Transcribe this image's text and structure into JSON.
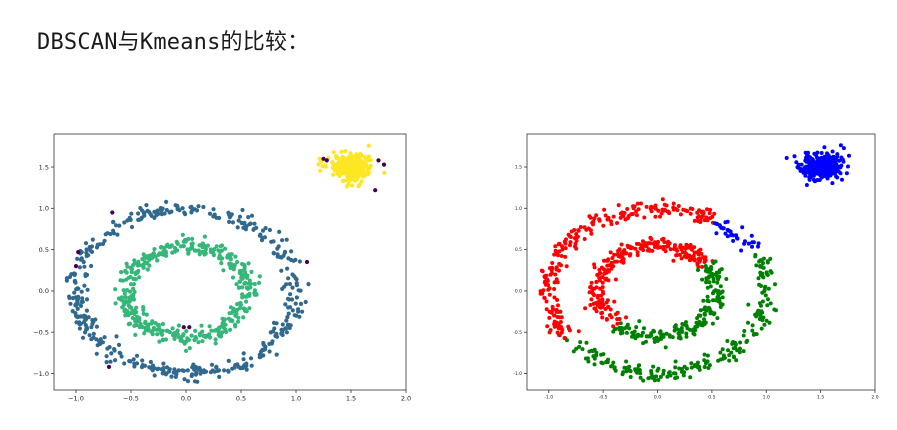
{
  "page": {
    "title": "DBSCAN与Kmeans的比较："
  },
  "chart_data": [
    {
      "type": "scatter",
      "title": "",
      "xlabel": "",
      "ylabel": "",
      "xlim": [
        -1.2,
        2.0
      ],
      "ylim": [
        -1.2,
        1.9
      ],
      "xticks": [
        "−1.0",
        "−0.5",
        "0.0",
        "0.5",
        "1.0",
        "1.5",
        "2.0"
      ],
      "xtick_values": [
        -1.0,
        -0.5,
        0.0,
        0.5,
        1.0,
        1.5,
        2.0
      ],
      "yticks": [
        "−1.0",
        "−0.5",
        "0.0",
        "0.5",
        "1.0",
        "1.5"
      ],
      "ytick_values": [
        -1.0,
        -0.5,
        0.0,
        0.5,
        1.0,
        1.5
      ],
      "grid": false,
      "series": [
        {
          "color": "#31688e",
          "shape": "ring",
          "center": [
            0.0,
            0.0
          ],
          "radius": 1.0,
          "spread": 0.05,
          "count": 420
        },
        {
          "color": "#35b779",
          "shape": "ring",
          "center": [
            0.0,
            0.0
          ],
          "radius": 0.55,
          "spread": 0.05,
          "count": 420
        },
        {
          "color": "#fde725",
          "shape": "blob",
          "center": [
            1.5,
            1.5
          ],
          "spread": 0.09,
          "count": 300
        },
        {
          "color": "#440154",
          "shape": "points",
          "points": [
            [
              1.25,
              1.6
            ],
            [
              1.28,
              1.58
            ],
            [
              1.75,
              1.58
            ],
            [
              1.8,
              1.53
            ],
            [
              1.72,
              1.22
            ],
            [
              -0.67,
              0.95
            ],
            [
              -0.98,
              0.47
            ],
            [
              -1.0,
              0.3
            ],
            [
              -0.7,
              -0.92
            ],
            [
              -0.02,
              -0.44
            ],
            [
              0.03,
              -0.44
            ],
            [
              1.1,
              0.35
            ]
          ]
        }
      ]
    },
    {
      "type": "scatter",
      "title": "",
      "xlabel": "",
      "ylabel": "",
      "xlim": [
        -1.2,
        2.0
      ],
      "ylim": [
        -1.2,
        1.9
      ],
      "xticks": [
        "-1.0",
        "-0.5",
        "0.0",
        "0.5",
        "1.0",
        "1.5",
        "2.0"
      ],
      "xtick_values": [
        -1.0,
        -0.5,
        0.0,
        0.5,
        1.0,
        1.5,
        2.0
      ],
      "yticks": [
        "-1.0",
        "-0.5",
        "0.0",
        "0.5",
        "1.0",
        "1.5"
      ],
      "ytick_values": [
        -1.0,
        -0.5,
        0.0,
        0.5,
        1.0,
        1.5
      ],
      "grid": false,
      "cluster_colors": {
        "red": "#ff0000",
        "green": "#008000",
        "blue": "#0000ff"
      },
      "series": [
        {
          "color": "#0000ff",
          "shape": "blob",
          "center": [
            1.5,
            1.5
          ],
          "spread": 0.09,
          "count": 300
        },
        {
          "color": "#ff0000",
          "shape": "ring",
          "center": [
            0.0,
            0.0
          ],
          "radius": 1.0,
          "spread": 0.05,
          "count": 230,
          "angle_range_deg": [
            58,
            215
          ]
        },
        {
          "color": "#0000ff",
          "shape": "ring",
          "center": [
            0.0,
            0.0
          ],
          "radius": 1.0,
          "spread": 0.05,
          "count": 35,
          "angle_range_deg": [
            30,
            58
          ]
        },
        {
          "color": "#008000",
          "shape": "ring",
          "center": [
            0.0,
            0.0
          ],
          "radius": 1.0,
          "spread": 0.05,
          "count": 210,
          "angle_range_deg": [
            215,
            390
          ]
        },
        {
          "color": "#ff0000",
          "shape": "ring",
          "center": [
            0.0,
            0.0
          ],
          "radius": 0.55,
          "spread": 0.05,
          "count": 230,
          "angle_range_deg": [
            35,
            228
          ]
        },
        {
          "color": "#008000",
          "shape": "ring",
          "center": [
            0.0,
            0.0
          ],
          "radius": 0.55,
          "spread": 0.05,
          "count": 190,
          "angle_range_deg": [
            228,
            395
          ]
        }
      ]
    }
  ]
}
